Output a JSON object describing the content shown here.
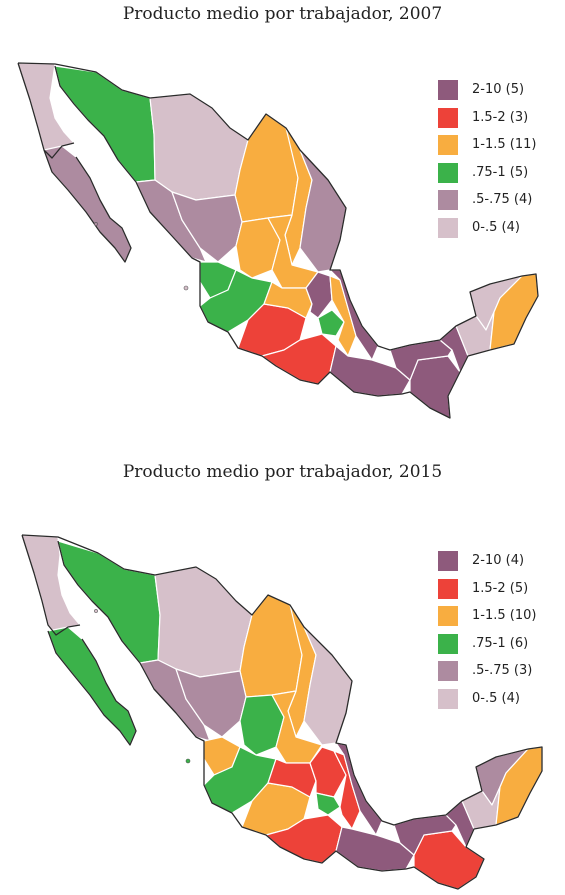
{
  "maps": [
    {
      "title": "Producto medio por trabajador, 2007",
      "legend": [
        {
          "label": "2-10 (5)",
          "color": "#8e5a7c"
        },
        {
          "label": "1.5-2 (3)",
          "color": "#ed4239"
        },
        {
          "label": "1-1.5 (11)",
          "color": "#f8ad40"
        },
        {
          "label": ".75-1 (5)",
          "color": "#3bb24a"
        },
        {
          "label": ".5-.75 (4)",
          "color": "#ad8ba0"
        },
        {
          "label": "0-.5 (4)",
          "color": "#d6c0ca"
        }
      ]
    },
    {
      "title": "Producto medio por trabajador, 2015",
      "legend": [
        {
          "label": "2-10 (4)",
          "color": "#8e5a7c"
        },
        {
          "label": "1.5-2 (5)",
          "color": "#ed4239"
        },
        {
          "label": "1-1.5 (10)",
          "color": "#f8ad40"
        },
        {
          "label": ".75-1 (6)",
          "color": "#3bb24a"
        },
        {
          "label": ".5-.75 (3)",
          "color": "#ad8ba0"
        },
        {
          "label": "0-.5 (4)",
          "color": "#d6c0ca"
        }
      ]
    }
  ]
}
